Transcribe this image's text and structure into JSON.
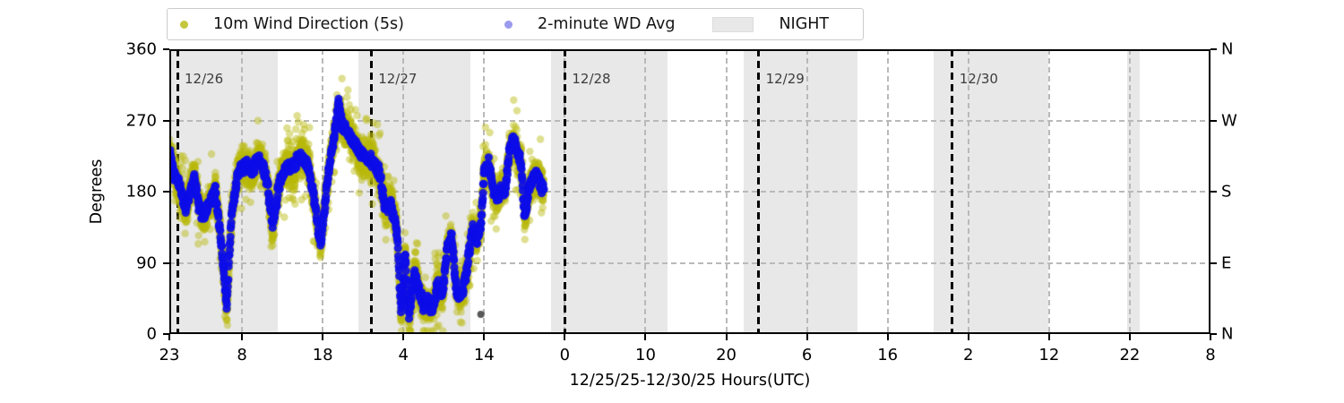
{
  "figure": {
    "background": "#ffffff"
  },
  "legend": {
    "items": [
      {
        "label": "10m Wind Direction (5s)",
        "marker": "dot",
        "color": "#c6c63e"
      },
      {
        "label": "2-minute WD Avg",
        "marker": "dot",
        "color": "#9a9aee"
      },
      {
        "label": "NIGHT",
        "marker": "patch",
        "color": "#e8e8e8"
      }
    ]
  },
  "chart_data": {
    "type": "scatter",
    "title": "",
    "xlabel": "12/25/25-12/30/25  Hours(UTC)",
    "ylabel": "Degrees",
    "ylim": [
      0,
      360
    ],
    "yticks_left": [
      0,
      90,
      180,
      270,
      360
    ],
    "yticks_right": [
      {
        "deg": 360,
        "label": "N"
      },
      {
        "deg": 270,
        "label": "W"
      },
      {
        "deg": 180,
        "label": "S"
      },
      {
        "deg": 90,
        "label": "E"
      },
      {
        "deg": 0,
        "label": "N"
      }
    ],
    "grid_y": [
      90,
      180,
      270
    ],
    "x_origin": "23:00 UTC 12/25/25",
    "x_range_hours": [
      0,
      129
    ],
    "xticks": [
      {
        "hour": 0,
        "label": "23"
      },
      {
        "hour": 9,
        "label": "8"
      },
      {
        "hour": 19,
        "label": "18"
      },
      {
        "hour": 29,
        "label": "4"
      },
      {
        "hour": 39,
        "label": "14"
      },
      {
        "hour": 49,
        "label": "0"
      },
      {
        "hour": 59,
        "label": "10"
      },
      {
        "hour": 69,
        "label": "20"
      },
      {
        "hour": 79,
        "label": "6"
      },
      {
        "hour": 89,
        "label": "16"
      },
      {
        "hour": 99,
        "label": "2"
      },
      {
        "hour": 109,
        "label": "12"
      },
      {
        "hour": 119,
        "label": "22"
      },
      {
        "hour": 129,
        "label": "8"
      }
    ],
    "date_lines": [
      {
        "hour": 1,
        "label": "12/26"
      },
      {
        "hour": 25,
        "label": "12/27"
      },
      {
        "hour": 49,
        "label": "12/28"
      },
      {
        "hour": 73,
        "label": "12/29"
      },
      {
        "hour": 97,
        "label": "12/30"
      }
    ],
    "night_intervals": [
      [
        0,
        13.4
      ],
      [
        23.4,
        37.3
      ],
      [
        47.3,
        61.7
      ],
      [
        71.2,
        85.3
      ],
      [
        94.7,
        108.9
      ],
      [
        118.7,
        120.2
      ]
    ],
    "series": [
      {
        "name": "10m Wind Direction (5s)",
        "color": "#b9b90c",
        "alpha": 0.45,
        "radius": 4.2,
        "interval_minutes": 0.5,
        "spread_deg": 30
      },
      {
        "name": "2-minute WD Avg",
        "color": "#0d0de8",
        "alpha": 0.92,
        "radius": 4.6,
        "interval_minutes": 2,
        "spread_deg": 11
      }
    ],
    "data_start_hour": 0,
    "data_end_hour": 46.4,
    "wd_avg_keyframes": [
      [
        0,
        232
      ],
      [
        0.4,
        205
      ],
      [
        1.2,
        188
      ],
      [
        2,
        162
      ],
      [
        2.6,
        178
      ],
      [
        3.1,
        198
      ],
      [
        3.6,
        162
      ],
      [
        4.3,
        150
      ],
      [
        5,
        168
      ],
      [
        5.7,
        178
      ],
      [
        6.3,
        128
      ],
      [
        7.1,
        36
      ],
      [
        7.7,
        152
      ],
      [
        8.4,
        198
      ],
      [
        9.3,
        214
      ],
      [
        10.2,
        208
      ],
      [
        11.2,
        222
      ],
      [
        12.2,
        188
      ],
      [
        12.8,
        136
      ],
      [
        13.5,
        186
      ],
      [
        14.4,
        208
      ],
      [
        15.4,
        214
      ],
      [
        16.4,
        226
      ],
      [
        17.4,
        204
      ],
      [
        18.2,
        152
      ],
      [
        18.8,
        116
      ],
      [
        19.5,
        186
      ],
      [
        20.2,
        236
      ],
      [
        21,
        292
      ],
      [
        21.4,
        268
      ],
      [
        22.2,
        250
      ],
      [
        23.2,
        236
      ],
      [
        24.2,
        224
      ],
      [
        25.2,
        218
      ],
      [
        26,
        204
      ],
      [
        26.8,
        162
      ],
      [
        27.4,
        166
      ],
      [
        28.2,
        130
      ],
      [
        28.7,
        30
      ],
      [
        29.2,
        100
      ],
      [
        29.7,
        24
      ],
      [
        30.4,
        76
      ],
      [
        31,
        52
      ],
      [
        31.5,
        34
      ],
      [
        32,
        46
      ],
      [
        32.6,
        28
      ],
      [
        33.2,
        62
      ],
      [
        33.8,
        46
      ],
      [
        34.4,
        108
      ],
      [
        35,
        128
      ],
      [
        35.5,
        60
      ],
      [
        36,
        44
      ],
      [
        36.6,
        62
      ],
      [
        37.1,
        102
      ],
      [
        37.6,
        136
      ],
      [
        38.1,
        118
      ],
      [
        38.6,
        136
      ],
      [
        39,
        204
      ],
      [
        39.6,
        214
      ],
      [
        40.1,
        186
      ],
      [
        40.6,
        172
      ],
      [
        41.1,
        186
      ],
      [
        41.6,
        176
      ],
      [
        42.1,
        230
      ],
      [
        42.6,
        246
      ],
      [
        43.1,
        234
      ],
      [
        43.6,
        214
      ],
      [
        44,
        142
      ],
      [
        44.5,
        176
      ],
      [
        45,
        196
      ],
      [
        45.5,
        206
      ],
      [
        46,
        190
      ],
      [
        46.4,
        184
      ]
    ],
    "outliers": [
      {
        "hour": 38.6,
        "deg": 25,
        "color": "#3c3c3c"
      }
    ]
  }
}
